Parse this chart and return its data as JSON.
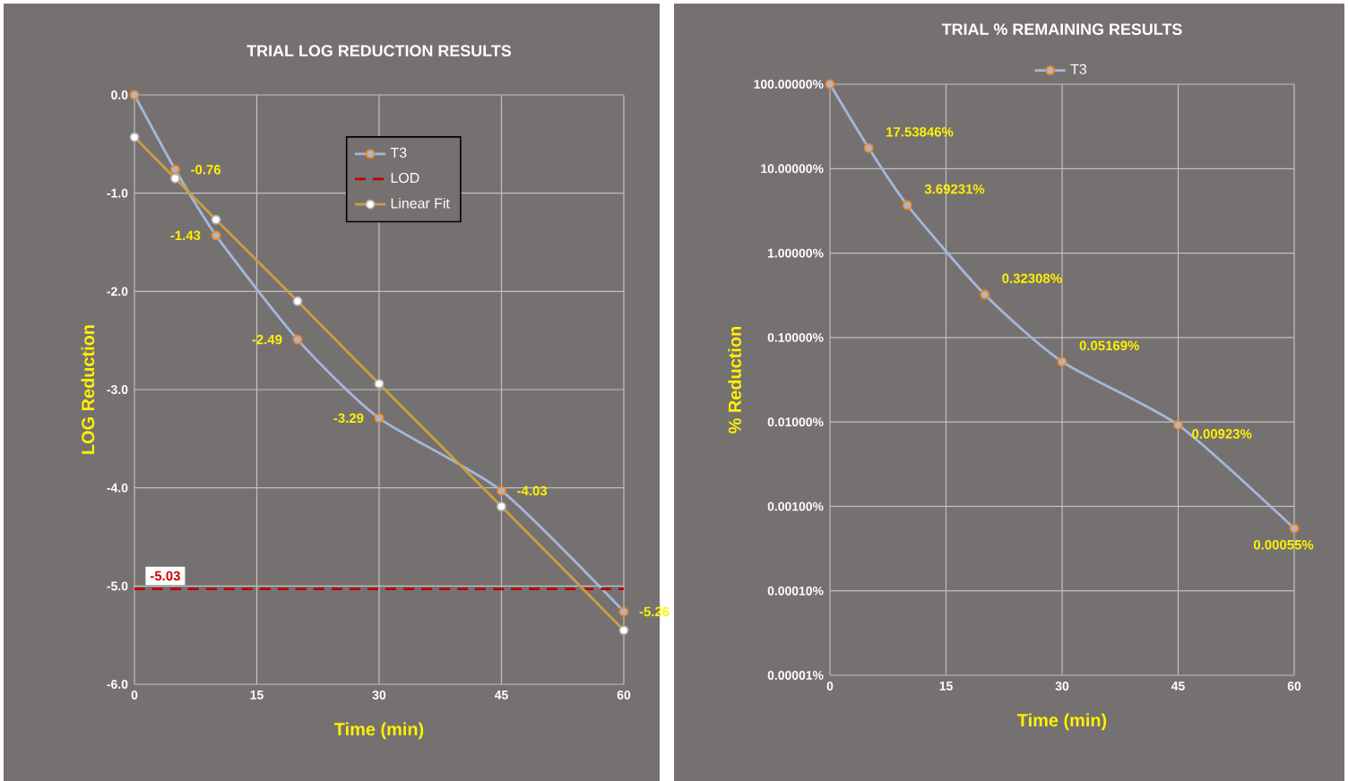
{
  "chart_data": [
    {
      "type": "line",
      "title": "TRIAL LOG REDUCTION  RESULTS",
      "xlabel": "Time (min)",
      "ylabel": "LOG Reduction",
      "x": [
        0,
        5,
        10,
        20,
        30,
        45,
        60
      ],
      "xlim": [
        0,
        60
      ],
      "xticks": [
        0,
        15,
        30,
        45,
        60
      ],
      "ylim": [
        -6,
        0
      ],
      "yticks": [
        {
          "value": 0,
          "label": "0.0"
        },
        {
          "value": -1,
          "label": "-1.0"
        },
        {
          "value": -2,
          "label": "-2.0"
        },
        {
          "value": -3,
          "label": "-3.0"
        },
        {
          "value": -4,
          "label": "-4.0"
        },
        {
          "value": -5,
          "label": "-5.0"
        },
        {
          "value": -6,
          "label": "-6.0"
        }
      ],
      "grid": true,
      "legend": "top",
      "series": [
        {
          "name": "T3",
          "color": "#a3b8d8",
          "marker": "circle",
          "values": [
            0,
            -0.76,
            -1.43,
            -2.49,
            -3.29,
            -4.03,
            -5.26
          ],
          "value_labels": [
            null,
            "-0.76",
            "-1.43",
            "-2.49",
            "-3.29",
            "-4.03",
            "-5.26"
          ]
        },
        {
          "name": "LOD",
          "color": "#c00000",
          "marker": "none",
          "line_style": "dashed",
          "x": [
            0,
            60
          ],
          "values": [
            -5.03,
            -5.03
          ]
        },
        {
          "name": "Linear Fit",
          "color": "#c8a040",
          "marker": "circle",
          "values": [
            -0.43,
            -0.85,
            -1.27,
            -2.1,
            -2.94,
            -4.19,
            -5.45
          ]
        }
      ],
      "annotations": [
        {
          "text": "-5.03",
          "x": 0,
          "y": -5.03
        }
      ]
    },
    {
      "type": "line",
      "title": "TRIAL % REMAINING  RESULTS",
      "xlabel": "Time (min)",
      "ylabel": "% Reduction",
      "x": [
        0,
        5,
        10,
        20,
        30,
        45,
        60
      ],
      "log": "y",
      "xlim": [
        0,
        60
      ],
      "xticks": [
        0,
        15,
        30,
        45,
        60
      ],
      "ylim": [
        1e-05,
        100
      ],
      "yticks": [
        {
          "value": 100,
          "label": "100.00000%"
        },
        {
          "value": 10,
          "label": "10.00000%"
        },
        {
          "value": 1,
          "label": "1.00000%"
        },
        {
          "value": 0.1,
          "label": "0.10000%"
        },
        {
          "value": 0.01,
          "label": "0.01000%"
        },
        {
          "value": 0.001,
          "label": "0.00100%"
        },
        {
          "value": 0.0001,
          "label": "0.00010%"
        },
        {
          "value": 1e-05,
          "label": "0.00001%"
        }
      ],
      "grid": true,
      "legend": "top",
      "series": [
        {
          "name": "T3",
          "color": "#a3b8d8",
          "marker": "circle",
          "values": [
            100,
            17.53846,
            3.69231,
            0.32308,
            0.05169,
            0.00923,
            0.00055
          ],
          "value_labels": [
            null,
            "17.53846%",
            "3.69231%",
            "0.32308%",
            "0.05169%",
            "0.00923%",
            "0.00055%"
          ]
        }
      ]
    }
  ]
}
